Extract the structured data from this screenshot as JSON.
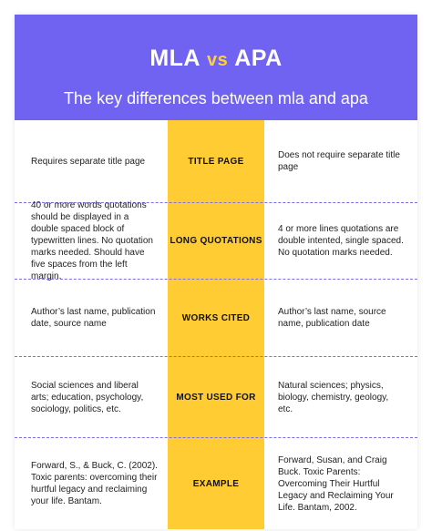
{
  "header": {
    "title_left": "MLA",
    "title_vs": "vs",
    "title_right": "APA",
    "subtitle": "The key differences between mla and apa"
  },
  "colors": {
    "header_bg": "#7163f2",
    "accent_yellow": "#ffcc33",
    "vs_color": "#ffd039",
    "separator": "#7a6ef0"
  },
  "rows": [
    {
      "category": "TITLE PAGE",
      "mla": "Requires separate title page",
      "apa": "Does not require separate title page"
    },
    {
      "category": "LONG QUOTATIONS",
      "mla": "40 or more words quotations should be displayed in a double spaced block of typewritten lines. No quotation marks needed. Should have five spaces from the left margin.",
      "apa": "4 or more lines quotations are double intented, single spaced. No quotation marks needed."
    },
    {
      "category": "WORKS CITED",
      "mla": "Author’s last name, publication date, source name",
      "apa": "Author’s last name, source name, publication date"
    },
    {
      "category": "MOST USED FOR",
      "mla": "Social sciences and liberal arts; education, psychology, sociology, politics, etc.",
      "apa": "Natural sciences; physics, biology, chemistry, geology, etc."
    },
    {
      "category": "EXAMPLE",
      "mla": "Forward, S., & Buck, C. (2002). Toxic parents: overcoming their hurtful legacy and reclaiming your life. Bantam.",
      "apa": "Forward, Susan, and Craig Buck. Toxic Parents: Overcoming Their Hurtful Legacy and Reclaiming Your Life. Bantam, 2002."
    }
  ]
}
